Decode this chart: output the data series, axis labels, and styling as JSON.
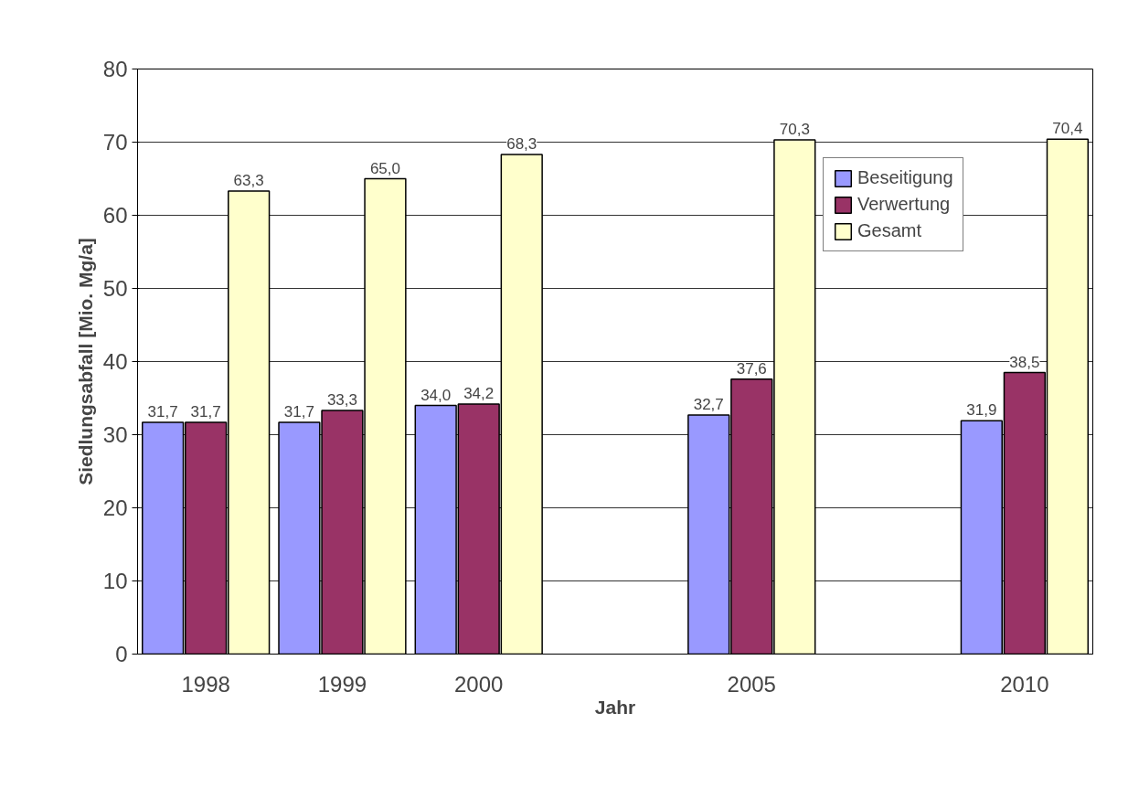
{
  "chart_data": {
    "type": "bar",
    "xlabel": "Jahr",
    "ylabel": "Siedlungsabfall [Mio. Mg/a]",
    "categories": [
      "1998",
      "1999",
      "2000",
      null,
      "2005",
      null,
      "2010"
    ],
    "series": [
      {
        "name": "Beseitigung",
        "color": "#9999ff",
        "values": [
          31.7,
          31.7,
          34.0,
          null,
          32.7,
          null,
          31.9
        ],
        "value_labels": [
          "31,7",
          "31,7",
          "34,0",
          null,
          "32,7",
          null,
          "31,9"
        ]
      },
      {
        "name": "Verwertung",
        "color": "#993366",
        "values": [
          31.7,
          33.3,
          34.2,
          null,
          37.6,
          null,
          38.5
        ],
        "value_labels": [
          "31,7",
          "33,3",
          "34,2",
          null,
          "37,6",
          null,
          "38,5"
        ]
      },
      {
        "name": "Gesamt",
        "color": "#ffffcc",
        "values": [
          63.3,
          65.0,
          68.3,
          null,
          70.3,
          null,
          70.4
        ],
        "value_labels": [
          "63,3",
          "65,0",
          "68,3",
          null,
          "70,3",
          null,
          "70,4"
        ]
      }
    ],
    "ylim": [
      0,
      80
    ],
    "yticks": [
      0,
      10,
      20,
      30,
      40,
      50,
      60,
      70,
      80
    ],
    "grid": "y",
    "legend": "top right"
  }
}
